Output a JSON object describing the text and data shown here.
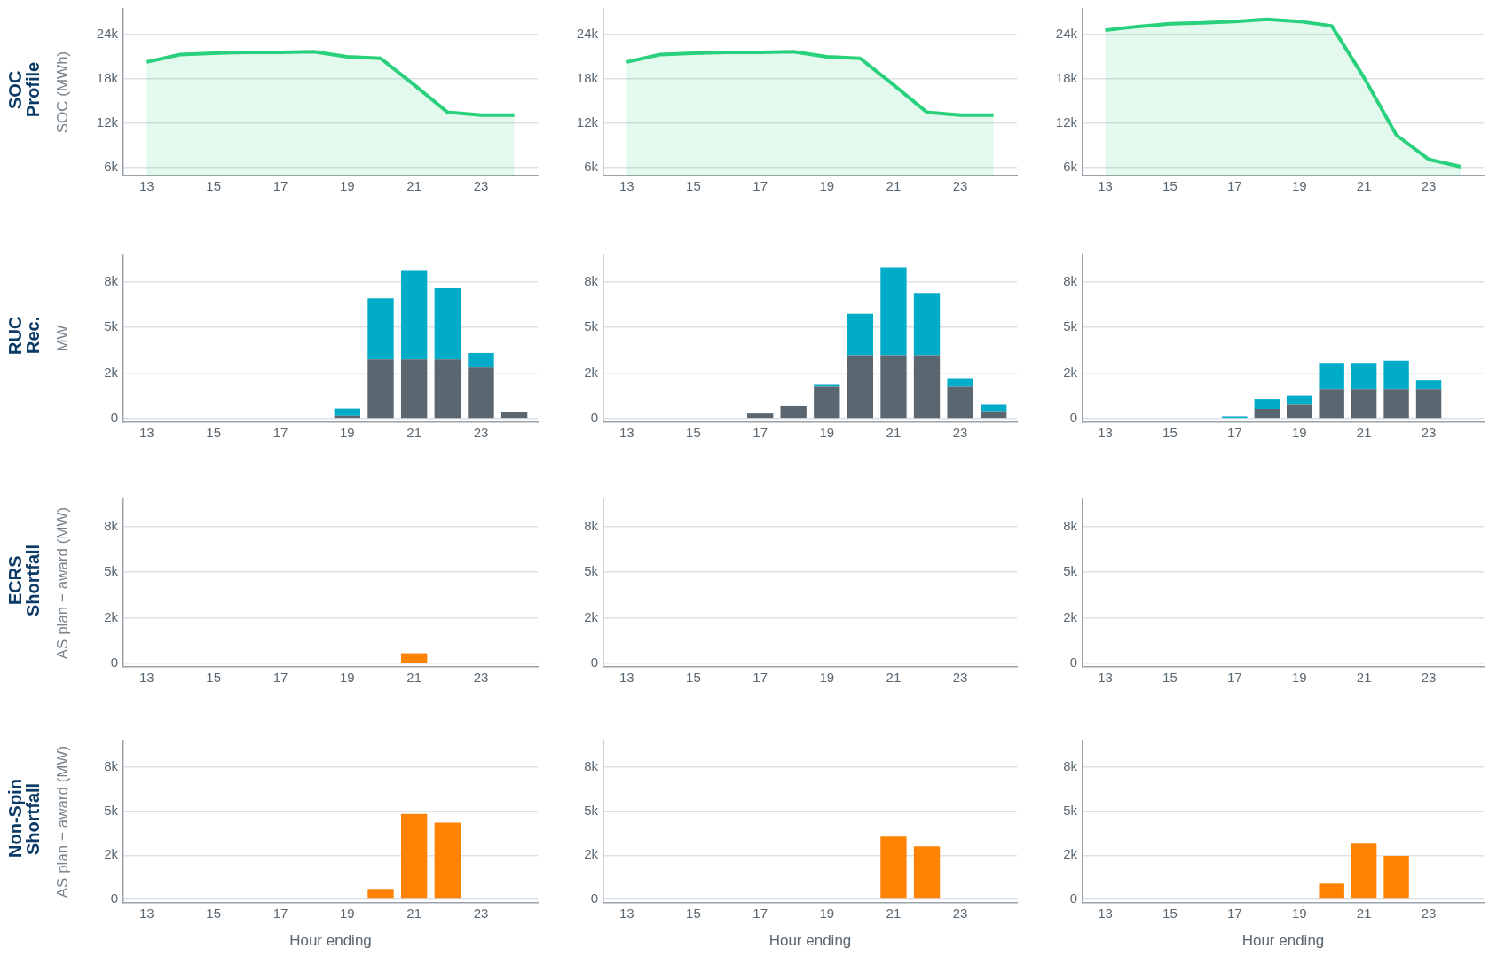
{
  "chart_data": [
    {
      "type": "area",
      "title": "SOC Profile",
      "ylabel": "SOC (MWh)",
      "x": [
        13,
        14,
        15,
        16,
        17,
        18,
        19,
        20,
        21,
        22,
        23,
        24
      ],
      "color": "#2ad17c",
      "values": [
        20300,
        21300,
        21500,
        21600,
        21600,
        21700,
        21000,
        20800,
        17200,
        13500,
        13100,
        13100
      ],
      "marker": "none",
      "xlim": [
        12.3,
        24.7
      ],
      "xticks": [
        13,
        15,
        17,
        19,
        21,
        23
      ],
      "ylim": [
        4900,
        27500
      ],
      "yticks": [
        {
          "value": 6000,
          "label": "6k"
        },
        {
          "value": 12000,
          "label": "12k"
        },
        {
          "value": 18000,
          "label": "18k"
        },
        {
          "value": 24000,
          "label": "24k"
        }
      ],
      "grid": "y"
    },
    {
      "type": "area",
      "x": [
        13,
        14,
        15,
        16,
        17,
        18,
        19,
        20,
        21,
        22,
        23,
        24
      ],
      "color": "#2ad17c",
      "values": [
        20300,
        21300,
        21500,
        21600,
        21600,
        21700,
        21000,
        20800,
        17200,
        13500,
        13100,
        13100
      ],
      "marker": "none",
      "xlim": [
        12.3,
        24.7
      ],
      "xticks": [
        13,
        15,
        17,
        19,
        21,
        23
      ],
      "ylim": [
        4900,
        27500
      ],
      "yticks": [
        {
          "value": 6000,
          "label": "6k"
        },
        {
          "value": 12000,
          "label": "12k"
        },
        {
          "value": 18000,
          "label": "18k"
        },
        {
          "value": 24000,
          "label": "24k"
        }
      ],
      "grid": "y"
    },
    {
      "type": "area",
      "x": [
        13,
        14,
        15,
        16,
        17,
        18,
        19,
        20,
        21,
        22,
        23,
        24
      ],
      "color": "#2ad17c",
      "values": [
        24600,
        25100,
        25500,
        25600,
        25800,
        26100,
        25800,
        25200,
        18200,
        10400,
        7100,
        6100
      ],
      "marker": "none",
      "xlim": [
        12.3,
        24.7
      ],
      "xticks": [
        13,
        15,
        17,
        19,
        21,
        23
      ],
      "ylim": [
        4900,
        27500
      ],
      "yticks": [
        {
          "value": 6000,
          "label": "6k"
        },
        {
          "value": 12000,
          "label": "12k"
        },
        {
          "value": 18000,
          "label": "18k"
        },
        {
          "value": 24000,
          "label": "24k"
        }
      ],
      "grid": "y"
    },
    {
      "type": "bar",
      "title": "RUC Rec.",
      "ylabel": "MW",
      "stacked": true,
      "x": [
        13,
        14,
        15,
        16,
        17,
        18,
        19,
        20,
        21,
        22,
        23,
        24
      ],
      "series": [
        {
          "color": "#5a6670",
          "values": [
            0,
            0,
            0,
            0,
            0,
            0,
            150,
            3250,
            3250,
            3250,
            2800,
            350
          ]
        },
        {
          "color": "#00acc8",
          "values": [
            0,
            0,
            0,
            0,
            0,
            0,
            400,
            3350,
            4900,
            3900,
            800,
            0
          ]
        }
      ],
      "xlim": [
        12.3,
        24.7
      ],
      "xticks": [
        13,
        15,
        17,
        19,
        21,
        23
      ],
      "ylim": [
        -200,
        9000
      ],
      "yticks": [
        {
          "value": 0,
          "label": "0"
        },
        {
          "value": 2500,
          "label": "2k"
        },
        {
          "value": 5000,
          "label": "5k"
        },
        {
          "value": 7500,
          "label": "8k"
        }
      ],
      "grid": "y"
    },
    {
      "type": "bar",
      "stacked": true,
      "x": [
        13,
        14,
        15,
        16,
        17,
        18,
        19,
        20,
        21,
        22,
        23,
        24
      ],
      "series": [
        {
          "color": "#5a6670",
          "values": [
            0,
            0,
            0,
            0,
            280,
            680,
            1770,
            3480,
            3480,
            3480,
            1770,
            400
          ]
        },
        {
          "color": "#00acc8",
          "values": [
            0,
            0,
            0,
            0,
            0,
            0,
            100,
            2270,
            4820,
            3420,
            440,
            350
          ]
        }
      ],
      "xlim": [
        12.3,
        24.7
      ],
      "xticks": [
        13,
        15,
        17,
        19,
        21,
        23
      ],
      "ylim": [
        -200,
        9000
      ],
      "yticks": [
        {
          "value": 0,
          "label": "0"
        },
        {
          "value": 2500,
          "label": "2k"
        },
        {
          "value": 5000,
          "label": "5k"
        },
        {
          "value": 7500,
          "label": "8k"
        }
      ],
      "grid": "y"
    },
    {
      "type": "bar",
      "stacked": true,
      "x": [
        13,
        14,
        15,
        16,
        17,
        18,
        19,
        20,
        21,
        22,
        23,
        24
      ],
      "series": [
        {
          "color": "#5a6670",
          "values": [
            0,
            0,
            0,
            0,
            0,
            530,
            750,
            1590,
            1590,
            1590,
            1590,
            0
          ]
        },
        {
          "color": "#00acc8",
          "values": [
            0,
            0,
            0,
            0,
            120,
            530,
            530,
            1460,
            1460,
            1580,
            490,
            0
          ]
        }
      ],
      "xlim": [
        12.3,
        24.7
      ],
      "xticks": [
        13,
        15,
        17,
        19,
        21,
        23
      ],
      "ylim": [
        -200,
        9000
      ],
      "yticks": [
        {
          "value": 0,
          "label": "0"
        },
        {
          "value": 2500,
          "label": "2k"
        },
        {
          "value": 5000,
          "label": "5k"
        },
        {
          "value": 7500,
          "label": "8k"
        }
      ],
      "grid": "y"
    },
    {
      "type": "bar",
      "title": "ECRS Shortfall",
      "ylabel": "AS plan − award (MW)",
      "x": [
        13,
        14,
        15,
        16,
        17,
        18,
        19,
        20,
        21,
        22,
        23,
        24
      ],
      "color": "#ff8200",
      "values": [
        0,
        0,
        0,
        0,
        0,
        0,
        0,
        0,
        550,
        0,
        0,
        0
      ],
      "xlim": [
        12.3,
        24.7
      ],
      "xticks": [
        13,
        15,
        17,
        19,
        21,
        23
      ],
      "ylim": [
        -200,
        9000
      ],
      "yticks": [
        {
          "value": 0,
          "label": "0"
        },
        {
          "value": 2500,
          "label": "2k"
        },
        {
          "value": 5000,
          "label": "5k"
        },
        {
          "value": 7500,
          "label": "8k"
        }
      ],
      "grid": "y"
    },
    {
      "type": "bar",
      "x": [
        13,
        14,
        15,
        16,
        17,
        18,
        19,
        20,
        21,
        22,
        23,
        24
      ],
      "color": "#ff8200",
      "values": [
        0,
        0,
        0,
        0,
        0,
        0,
        0,
        0,
        0,
        0,
        0,
        0
      ],
      "xlim": [
        12.3,
        24.7
      ],
      "xticks": [
        13,
        15,
        17,
        19,
        21,
        23
      ],
      "ylim": [
        -200,
        9000
      ],
      "yticks": [
        {
          "value": 0,
          "label": "0"
        },
        {
          "value": 2500,
          "label": "2k"
        },
        {
          "value": 5000,
          "label": "5k"
        },
        {
          "value": 7500,
          "label": "8k"
        }
      ],
      "grid": "y"
    },
    {
      "type": "bar",
      "x": [
        13,
        14,
        15,
        16,
        17,
        18,
        19,
        20,
        21,
        22,
        23,
        24
      ],
      "color": "#ff8200",
      "values": [
        0,
        0,
        0,
        0,
        0,
        0,
        0,
        0,
        0,
        0,
        0,
        0
      ],
      "xlim": [
        12.3,
        24.7
      ],
      "xticks": [
        13,
        15,
        17,
        19,
        21,
        23
      ],
      "ylim": [
        -200,
        9000
      ],
      "yticks": [
        {
          "value": 0,
          "label": "0"
        },
        {
          "value": 2500,
          "label": "2k"
        },
        {
          "value": 5000,
          "label": "5k"
        },
        {
          "value": 7500,
          "label": "8k"
        }
      ],
      "grid": "y"
    },
    {
      "type": "bar",
      "title": "Non-Spin Shortfall",
      "ylabel": "AS plan − award (MW)",
      "xlabel": "Hour ending",
      "x": [
        13,
        14,
        15,
        16,
        17,
        18,
        19,
        20,
        21,
        22,
        23,
        24
      ],
      "color": "#ff8200",
      "values": [
        0,
        0,
        0,
        0,
        0,
        0,
        0,
        590,
        4840,
        4350,
        0,
        0
      ],
      "xlim": [
        12.3,
        24.7
      ],
      "xticks": [
        13,
        15,
        17,
        19,
        21,
        23
      ],
      "ylim": [
        -200,
        9000
      ],
      "yticks": [
        {
          "value": 0,
          "label": "0"
        },
        {
          "value": 2500,
          "label": "2k"
        },
        {
          "value": 5000,
          "label": "5k"
        },
        {
          "value": 7500,
          "label": "8k"
        }
      ],
      "grid": "y"
    },
    {
      "type": "bar",
      "xlabel": "Hour ending",
      "x": [
        13,
        14,
        15,
        16,
        17,
        18,
        19,
        20,
        21,
        22,
        23,
        24
      ],
      "color": "#ff8200",
      "values": [
        0,
        0,
        0,
        0,
        0,
        0,
        0,
        0,
        3560,
        3010,
        0,
        0
      ],
      "xlim": [
        12.3,
        24.7
      ],
      "xticks": [
        13,
        15,
        17,
        19,
        21,
        23
      ],
      "ylim": [
        -200,
        9000
      ],
      "yticks": [
        {
          "value": 0,
          "label": "0"
        },
        {
          "value": 2500,
          "label": "2k"
        },
        {
          "value": 5000,
          "label": "5k"
        },
        {
          "value": 7500,
          "label": "8k"
        }
      ],
      "grid": "y"
    },
    {
      "type": "bar",
      "xlabel": "Hour ending",
      "x": [
        13,
        14,
        15,
        16,
        17,
        18,
        19,
        20,
        21,
        22,
        23,
        24
      ],
      "color": "#ff8200",
      "values": [
        0,
        0,
        0,
        0,
        0,
        0,
        0,
        890,
        3160,
        2470,
        0,
        0
      ],
      "xlim": [
        12.3,
        24.7
      ],
      "xticks": [
        13,
        15,
        17,
        19,
        21,
        23
      ],
      "ylim": [
        -200,
        9000
      ],
      "yticks": [
        {
          "value": 0,
          "label": "0"
        },
        {
          "value": 2500,
          "label": "2k"
        },
        {
          "value": 5000,
          "label": "5k"
        },
        {
          "value": 7500,
          "label": "8k"
        }
      ],
      "grid": "y"
    }
  ]
}
